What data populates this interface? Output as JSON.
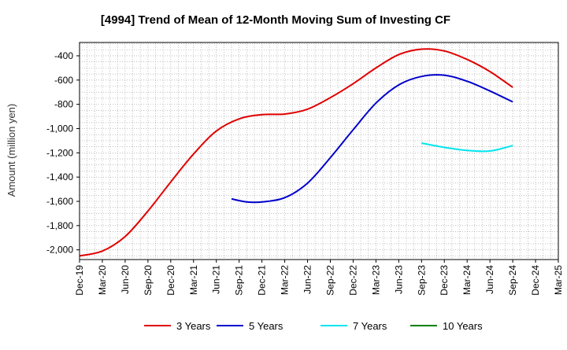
{
  "chart_data": {
    "type": "line",
    "title": "[4994]  Trend of Mean of 12-Month Moving Sum of Investing CF",
    "xlabel": "",
    "ylabel": "Amount (million yen)",
    "ylim": [
      -2080,
      -290
    ],
    "yticks": [
      -400,
      -600,
      -800,
      -1000,
      -1200,
      -1400,
      -1600,
      -1800,
      -2000
    ],
    "ytick_labels": [
      "-400",
      "-600",
      "-800",
      "-1,000",
      "-1,200",
      "-1,400",
      "-1,600",
      "-1,800",
      "-2,000"
    ],
    "x_range": [
      0,
      63
    ],
    "x_ticks": [
      0,
      3,
      6,
      9,
      12,
      15,
      18,
      21,
      24,
      27,
      30,
      33,
      36,
      39,
      42,
      45,
      48,
      51,
      54,
      57,
      60,
      63
    ],
    "x_tick_labels": [
      "Dec-19",
      "Mar-20",
      "Jun-20",
      "Sep-20",
      "Dec-20",
      "Mar-21",
      "Jun-21",
      "Sep-21",
      "Dec-21",
      "Mar-22",
      "Jun-22",
      "Sep-22",
      "Dec-22",
      "Mar-23",
      "Jun-23",
      "Sep-23",
      "Dec-23",
      "Mar-24",
      "Jun-24",
      "Sep-24",
      "Dec-24",
      "Mar-25"
    ],
    "grid": true,
    "legend_position": "bottom",
    "series": [
      {
        "name": "3 Years",
        "color": "#e00000",
        "x": [
          0,
          3,
          6,
          9,
          12,
          15,
          18,
          21,
          24,
          27,
          30,
          33,
          36,
          39,
          42,
          45,
          48,
          51,
          54,
          57
        ],
        "values": [
          -2050,
          -2010,
          -1890,
          -1680,
          -1440,
          -1210,
          -1020,
          -920,
          -885,
          -880,
          -840,
          -745,
          -630,
          -500,
          -390,
          -345,
          -360,
          -430,
          -530,
          -660
        ]
      },
      {
        "name": "5 Years",
        "color": "#0000cc",
        "x": [
          20,
          22,
          24,
          27,
          30,
          33,
          36,
          39,
          42,
          45,
          48,
          51,
          54,
          57
        ],
        "values": [
          -1580,
          -1605,
          -1605,
          -1570,
          -1450,
          -1240,
          -1010,
          -790,
          -640,
          -570,
          -560,
          -610,
          -690,
          -780
        ]
      },
      {
        "name": "7 Years",
        "color": "#00e5ee",
        "x": [
          45,
          48,
          51,
          54,
          57
        ],
        "values": [
          -1120,
          -1155,
          -1180,
          -1185,
          -1140
        ]
      },
      {
        "name": "10 Years",
        "color": "#008000",
        "x": [],
        "values": []
      }
    ]
  }
}
